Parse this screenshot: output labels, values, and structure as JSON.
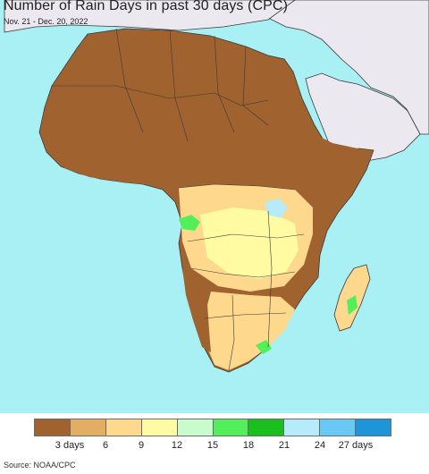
{
  "title": "Number of Rain Days in past 30 days (CPC)",
  "subtitle": "Nov. 21 - Dec. 20, 2022",
  "source": "Source: NOAA/CPC",
  "colors": {
    "ocean": "#a9f0f4",
    "non_data_land": "#ece8ef",
    "boundary": "#3a3a3a"
  },
  "legend": {
    "bins": [
      {
        "color": "#a0622e",
        "range": [
          0,
          3
        ]
      },
      {
        "color": "#e3ad62",
        "range": [
          3,
          6
        ]
      },
      {
        "color": "#fdd88d",
        "range": [
          6,
          9
        ]
      },
      {
        "color": "#fefba3",
        "range": [
          9,
          12
        ]
      },
      {
        "color": "#c9fccd",
        "range": [
          12,
          15
        ]
      },
      {
        "color": "#52ef5a",
        "range": [
          15,
          18
        ]
      },
      {
        "color": "#18bf1d",
        "range": [
          18,
          21
        ]
      },
      {
        "color": "#b5ebfa",
        "range": [
          21,
          24
        ]
      },
      {
        "color": "#68c9f5",
        "range": [
          24,
          27
        ]
      },
      {
        "color": "#1e94d9",
        "range": [
          27,
          30
        ]
      }
    ],
    "tick_labels": [
      "3 days",
      "6",
      "9",
      "12",
      "15",
      "18",
      "21",
      "24",
      "27 days"
    ]
  }
}
